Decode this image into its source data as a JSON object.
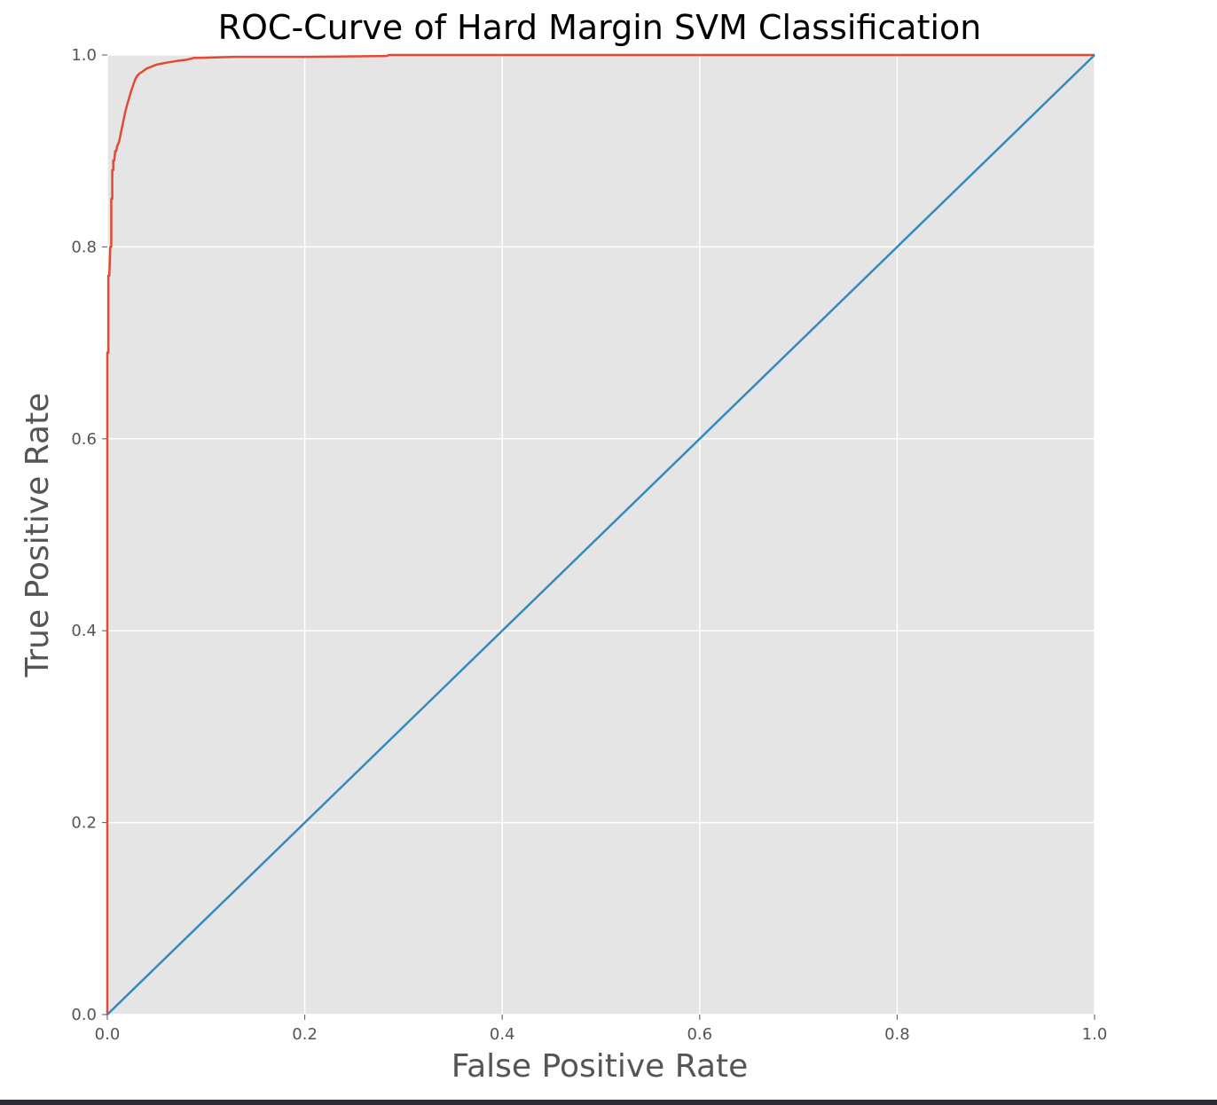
{
  "chart_data": {
    "type": "line",
    "title": "ROC-Curve of Hard Margin SVM Classification",
    "xlabel": "False Positive Rate",
    "ylabel": "True Positive Rate",
    "xlim": [
      0.0,
      1.0
    ],
    "ylim": [
      0.0,
      1.0
    ],
    "xticks": [
      "0.0",
      "0.2",
      "0.4",
      "0.6",
      "0.8",
      "1.0"
    ],
    "yticks": [
      "0.0",
      "0.2",
      "0.4",
      "0.6",
      "0.8",
      "1.0"
    ],
    "grid": true,
    "legend": "none",
    "colors": {
      "background": "#e5e5e5",
      "grid": "#ffffff",
      "roc_curve": "#e24a33",
      "diagonal": "#348abd"
    },
    "series": [
      {
        "x": [
          0.0,
          0.0,
          0.001,
          0.001,
          0.002,
          0.003,
          0.004,
          0.004,
          0.005,
          0.005,
          0.006,
          0.006,
          0.007,
          0.008,
          0.009,
          0.01,
          0.012,
          0.014,
          0.016,
          0.018,
          0.02,
          0.022,
          0.024,
          0.026,
          0.028,
          0.03,
          0.033,
          0.036,
          0.04,
          0.045,
          0.05,
          0.055,
          0.06,
          0.066,
          0.072,
          0.08,
          0.088,
          0.095,
          0.128,
          0.2,
          0.283,
          0.285,
          1.0
        ],
        "y": [
          0.0,
          0.69,
          0.69,
          0.77,
          0.77,
          0.8,
          0.8,
          0.85,
          0.85,
          0.88,
          0.88,
          0.89,
          0.89,
          0.9,
          0.9,
          0.905,
          0.91,
          0.92,
          0.93,
          0.94,
          0.948,
          0.955,
          0.962,
          0.968,
          0.974,
          0.978,
          0.981,
          0.983,
          0.986,
          0.988,
          0.99,
          0.991,
          0.992,
          0.993,
          0.994,
          0.995,
          0.997,
          0.997,
          0.998,
          0.998,
          0.999,
          1.0,
          1.0
        ]
      },
      {
        "x": [
          0.0,
          1.0
        ],
        "y": [
          0.0,
          1.0
        ]
      }
    ]
  }
}
